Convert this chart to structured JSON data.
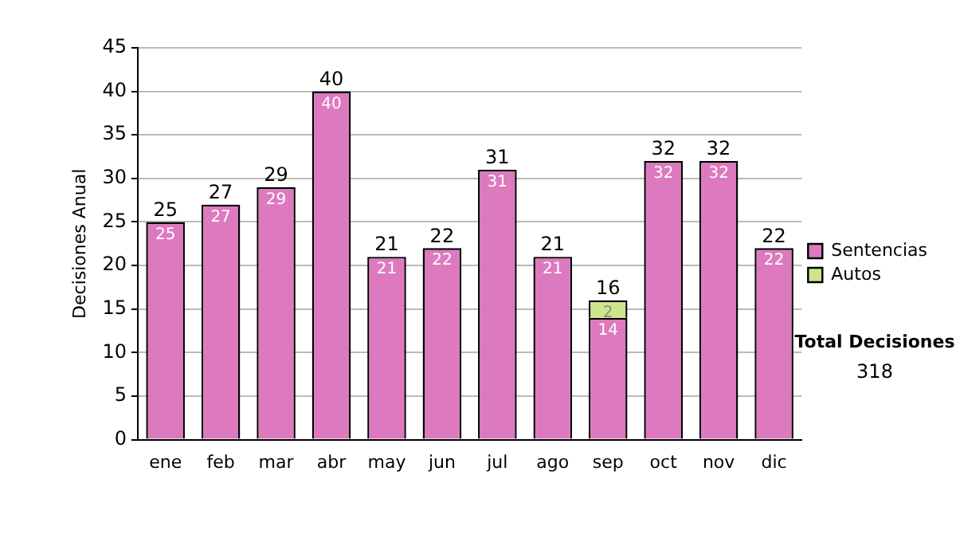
{
  "chart_data": {
    "type": "bar",
    "stacked": true,
    "ylabel": "Decisiones Anual",
    "categories": [
      "ene",
      "feb",
      "mar",
      "abr",
      "may",
      "jun",
      "jul",
      "ago",
      "sep",
      "oct",
      "nov",
      "dic"
    ],
    "series": [
      {
        "name": "Sentencias",
        "color": "#dd7abf",
        "values": [
          25,
          27,
          29,
          40,
          21,
          22,
          31,
          21,
          14,
          32,
          32,
          22
        ],
        "value_labels": [
          "25",
          "27",
          "29",
          "40",
          "21",
          "22",
          "31",
          "21",
          "14",
          "32",
          "32",
          "22"
        ]
      },
      {
        "name": "Autos",
        "color": "#cde68c",
        "values": [
          0,
          0,
          0,
          0,
          0,
          0,
          0,
          0,
          2,
          0,
          0,
          0
        ],
        "value_labels": [
          null,
          null,
          null,
          null,
          null,
          null,
          null,
          null,
          "2",
          null,
          null,
          null
        ]
      }
    ],
    "totals": [
      "25",
      "27",
      "29",
      "40",
      "21",
      "22",
      "31",
      "21",
      "16",
      "32",
      "32",
      "22"
    ],
    "ylim": [
      0,
      45
    ],
    "yticks": [
      0,
      5,
      10,
      15,
      20,
      25,
      30,
      35,
      40,
      45
    ],
    "grid": "y",
    "legend": "right",
    "annotations": [
      "Total Decisiones",
      "318"
    ]
  }
}
